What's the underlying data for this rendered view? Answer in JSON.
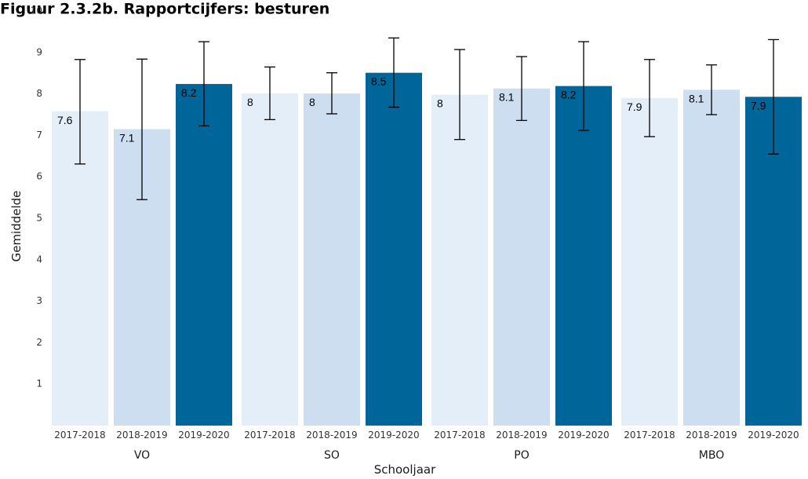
{
  "chart_data": {
    "type": "bar",
    "title": "Figuur 2.3.2b. Rapportcijfers: besturen",
    "xlabel": "Schooljaar",
    "ylabel": "Gemiddelde",
    "ylim": [
      0,
      10
    ],
    "yticks": [
      1,
      2,
      3,
      4,
      5,
      6,
      7,
      8,
      9,
      10
    ],
    "grid": false,
    "legend": "none",
    "groups": [
      "VO",
      "SO",
      "PO",
      "MBO"
    ],
    "categories": [
      "2017-2018",
      "2018-2019",
      "2019-2020"
    ],
    "colors": [
      "#e3eef8",
      "#ccdeef",
      "#006699"
    ],
    "series": [
      {
        "group": "VO",
        "values": [
          7.58,
          7.15,
          8.24
        ],
        "labels": [
          "7.6",
          "7.1",
          "8.2"
        ],
        "err_low": [
          6.31,
          5.45,
          7.23
        ],
        "err_high": [
          8.83,
          8.84,
          9.26
        ]
      },
      {
        "group": "SO",
        "values": [
          8.01,
          8.01,
          8.51
        ],
        "labels": [
          "8",
          "8",
          "8.5"
        ],
        "err_low": [
          7.38,
          7.52,
          7.68
        ],
        "err_high": [
          8.65,
          8.51,
          9.35
        ]
      },
      {
        "group": "PO",
        "values": [
          7.98,
          8.13,
          8.19
        ],
        "labels": [
          "8",
          "8.1",
          "8.2"
        ],
        "err_low": [
          6.9,
          7.36,
          7.12
        ],
        "err_high": [
          9.07,
          8.9,
          9.26
        ]
      },
      {
        "group": "MBO",
        "values": [
          7.9,
          8.1,
          7.93
        ],
        "labels": [
          "7.9",
          "8.1",
          "7.9"
        ],
        "err_low": [
          6.97,
          7.5,
          6.55
        ],
        "err_high": [
          8.83,
          8.7,
          9.31
        ]
      }
    ]
  }
}
